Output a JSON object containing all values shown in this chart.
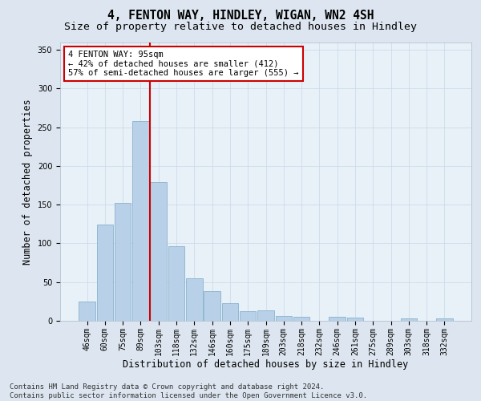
{
  "title_line1": "4, FENTON WAY, HINDLEY, WIGAN, WN2 4SH",
  "title_line2": "Size of property relative to detached houses in Hindley",
  "xlabel": "Distribution of detached houses by size in Hindley",
  "ylabel": "Number of detached properties",
  "categories": [
    "46sqm",
    "60sqm",
    "75sqm",
    "89sqm",
    "103sqm",
    "118sqm",
    "132sqm",
    "146sqm",
    "160sqm",
    "175sqm",
    "189sqm",
    "203sqm",
    "218sqm",
    "232sqm",
    "246sqm",
    "261sqm",
    "275sqm",
    "289sqm",
    "303sqm",
    "318sqm",
    "332sqm"
  ],
  "values": [
    25,
    124,
    152,
    258,
    179,
    96,
    55,
    38,
    23,
    12,
    13,
    6,
    5,
    0,
    5,
    4,
    0,
    0,
    3,
    0,
    3
  ],
  "bar_color": "#b8d0e8",
  "bar_edge_color": "#7aaac8",
  "vline_x": 3.5,
  "vline_color": "#cc0000",
  "annotation_text": "4 FENTON WAY: 95sqm\n← 42% of detached houses are smaller (412)\n57% of semi-detached houses are larger (555) →",
  "annotation_box_color": "#ffffff",
  "annotation_box_edge_color": "#cc0000",
  "ylim": [
    0,
    360
  ],
  "yticks": [
    0,
    50,
    100,
    150,
    200,
    250,
    300,
    350
  ],
  "bg_color": "#dde6f0",
  "plot_bg_color": "#e8f0f8",
  "footer_text": "Contains HM Land Registry data © Crown copyright and database right 2024.\nContains public sector information licensed under the Open Government Licence v3.0.",
  "title_fontsize": 10.5,
  "subtitle_fontsize": 9.5,
  "tick_fontsize": 7,
  "label_fontsize": 8.5,
  "footer_fontsize": 6.5,
  "annotation_fontsize": 7.5
}
